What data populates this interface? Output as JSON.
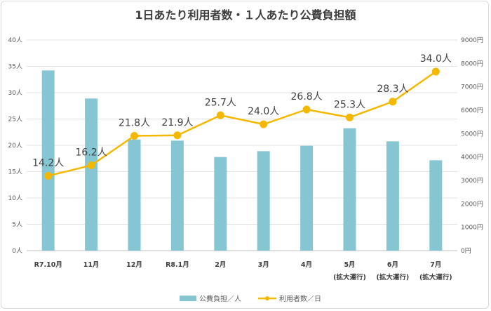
{
  "chart_data": {
    "type": "bar+line",
    "title": "1日あたり利用者数・１人あたり公費負担額",
    "categories": [
      [
        "R7.10月"
      ],
      [
        "11月"
      ],
      [
        "12月"
      ],
      [
        "R8.1月"
      ],
      [
        "2月"
      ],
      [
        "3月"
      ],
      [
        "4月"
      ],
      [
        "5月",
        "(拡大運行)"
      ],
      [
        "6月",
        "(拡大運行)"
      ],
      [
        "7月",
        "(拡大運行)"
      ]
    ],
    "left_axis": {
      "ylim": [
        0,
        40
      ],
      "ticks": [
        "0人",
        "5人",
        "10人",
        "15人",
        "20人",
        "25人",
        "30人",
        "35人",
        "40人"
      ]
    },
    "right_axis": {
      "ylim": [
        0,
        9000
      ],
      "ticks": [
        "0円",
        "1000円",
        "2000円",
        "3000円",
        "4000円",
        "5000円",
        "6000円",
        "7000円",
        "8000円",
        "9000円"
      ]
    },
    "series": [
      {
        "name": "公費負担／人",
        "type": "bar",
        "axis": "right",
        "color": "#86c6d2",
        "values": [
          7700,
          6500,
          4750,
          4700,
          4000,
          4250,
          4480,
          5230,
          4670,
          3860
        ]
      },
      {
        "name": "利用者数／日",
        "type": "line",
        "axis": "left",
        "color": "#f5b800",
        "values": [
          14.2,
          16.2,
          21.8,
          21.9,
          25.7,
          24.0,
          26.8,
          25.3,
          28.3,
          34.0
        ],
        "labels": [
          "14.2人",
          "16.2人",
          "21.8人",
          "21.9人",
          "25.7人",
          "24.0人",
          "26.8人",
          "25.3人",
          "28.3人",
          "34.0人"
        ]
      }
    ],
    "grid": true,
    "legend_position": "bottom"
  }
}
